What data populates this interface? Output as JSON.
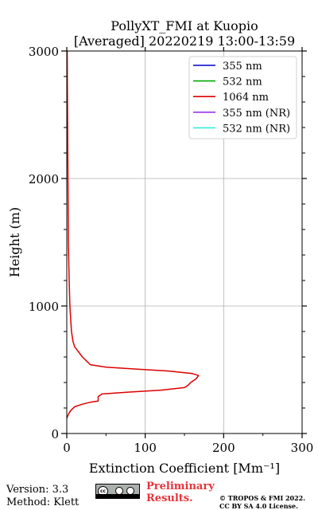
{
  "chart_data": {
    "type": "line",
    "title": [
      "PollyXT_FMI at Kuopio",
      "[Averaged] 20220219 13:00-13:59"
    ],
    "xlabel": "Extinction Coefficient [Mm⁻¹]",
    "ylabel": "Height (m)",
    "xlim": [
      0,
      300
    ],
    "ylim": [
      0,
      3000
    ],
    "xticks": [
      0,
      100,
      200,
      300
    ],
    "yticks": [
      0,
      1000,
      2000,
      3000
    ],
    "grid": true,
    "legend_position": "top-right",
    "series": [
      {
        "name": "355 nm",
        "color": "#0000cc",
        "x": [],
        "y": []
      },
      {
        "name": "532 nm",
        "color": "#00aa00",
        "x": [],
        "y": []
      },
      {
        "name": "1064 nm",
        "color": "#dd0000",
        "x": [
          0,
          2,
          5,
          10,
          20,
          30,
          40,
          40,
          45,
          80,
          120,
          150,
          155,
          158,
          165,
          168,
          160,
          130,
          90,
          50,
          30,
          25,
          20,
          15,
          10,
          8,
          6,
          5,
          4,
          3,
          2,
          1.5,
          1,
          0.5
        ],
        "y": [
          120,
          150,
          180,
          210,
          230,
          245,
          255,
          290,
          310,
          325,
          340,
          360,
          380,
          400,
          430,
          455,
          470,
          490,
          505,
          520,
          540,
          570,
          600,
          640,
          680,
          720,
          800,
          900,
          1000,
          1200,
          1500,
          2000,
          2500,
          3000
        ]
      },
      {
        "name": "355 nm (NR)",
        "color": "#9933ee",
        "x": [],
        "y": []
      },
      {
        "name": "532 nm (NR)",
        "color": "#33eedd",
        "x": [],
        "y": []
      }
    ]
  },
  "footer": {
    "version": "Version: 3.3",
    "method": "Method: Klett",
    "preliminary": [
      "Preliminary",
      "Results."
    ],
    "copyright": [
      "© TROPOS & FMI 2022.",
      "CC BY SA 4.0 License."
    ]
  }
}
